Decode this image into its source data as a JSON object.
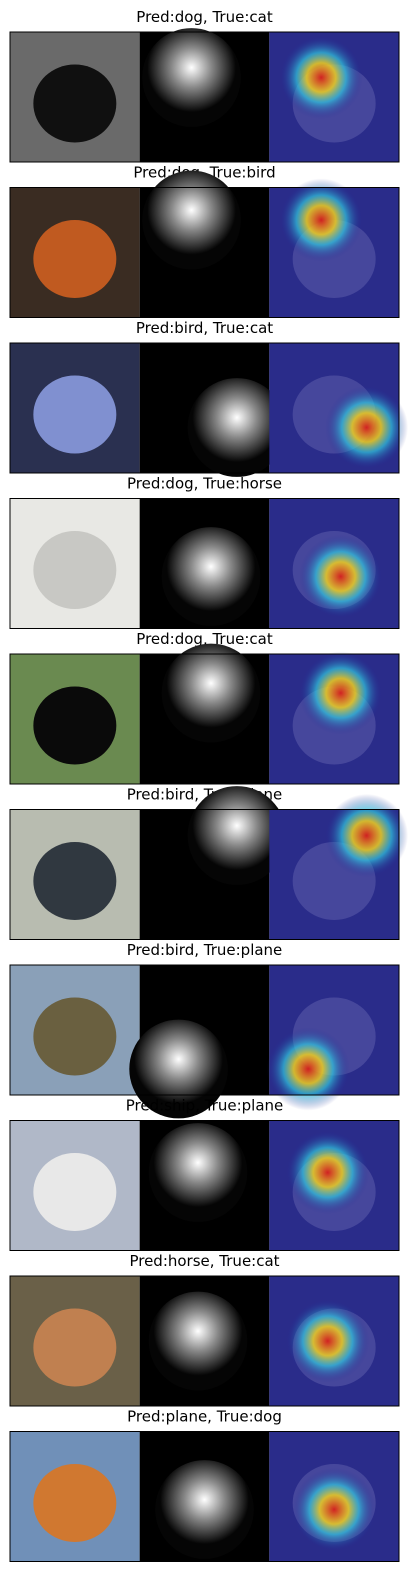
{
  "panels": [
    {
      "title": "Pred:dog, True:cat"
    },
    {
      "title": "Pred:dog, True:bird"
    },
    {
      "title": "Pred:bird, True:cat"
    },
    {
      "title": "Pred:dog, True:horse"
    },
    {
      "title": "Pred:dog, True:cat"
    },
    {
      "title": "Pred:bird, True:plane"
    },
    {
      "title": "Pred:bird, True:plane"
    },
    {
      "title": "Pred:ship, True:plane"
    },
    {
      "title": "Pred:horse, True:cat"
    },
    {
      "title": "Pred:plane, True:dog"
    }
  ]
}
